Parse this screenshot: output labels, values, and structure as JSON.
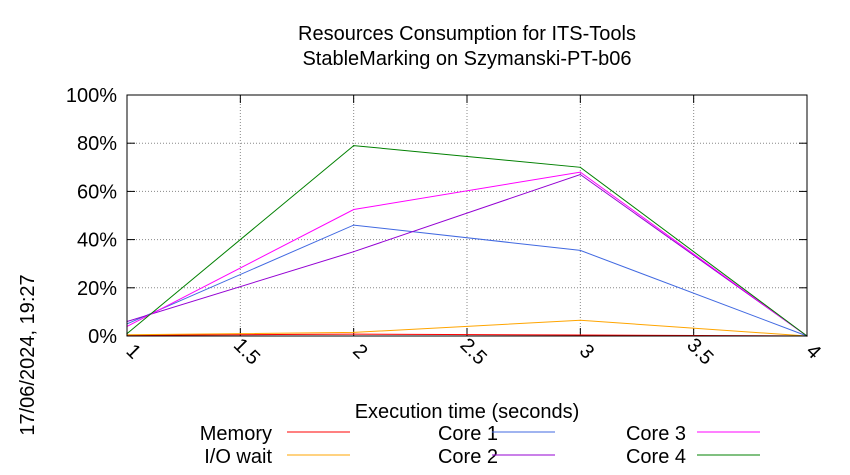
{
  "chart_data": {
    "type": "line",
    "title": "Resources Consumption for ITS-Tools",
    "subtitle": "StableMarking on Szymanski-PT-b06",
    "xlabel": "Execution time (seconds)",
    "ylabel": "",
    "side_label": "17/06/2024, 19:27",
    "xlim": [
      1,
      4
    ],
    "ylim": [
      0,
      100
    ],
    "x_ticks": [
      1,
      1.5,
      2,
      2.5,
      3,
      3.5,
      4
    ],
    "x_tick_labels": [
      "1",
      "1.5",
      "2",
      "2.5",
      "3",
      "3.5",
      "4"
    ],
    "y_ticks": [
      0,
      20,
      40,
      60,
      80,
      100
    ],
    "y_tick_labels": [
      "0%",
      "20%",
      "40%",
      "60%",
      "80%",
      "100%"
    ],
    "grid": true,
    "legend_position": "bottom",
    "x": [
      1,
      2,
      3,
      4
    ],
    "series": [
      {
        "name": "Memory",
        "color": "#ff0000",
        "values": [
          0.3,
          0.8,
          0.4,
          0
        ]
      },
      {
        "name": "I/O wait",
        "color": "#ffa500",
        "values": [
          0.5,
          1.5,
          6.5,
          0
        ]
      },
      {
        "name": "Core 1",
        "color": "#4169e1",
        "values": [
          5,
          46,
          35.5,
          0
        ]
      },
      {
        "name": "Core 2",
        "color": "#9400d3",
        "values": [
          6,
          35,
          67,
          0
        ]
      },
      {
        "name": "Core 3",
        "color": "#ff00ff",
        "values": [
          4,
          52.5,
          68,
          0
        ]
      },
      {
        "name": "Core 4",
        "color": "#008000",
        "values": [
          1,
          79,
          70,
          0
        ]
      }
    ]
  }
}
